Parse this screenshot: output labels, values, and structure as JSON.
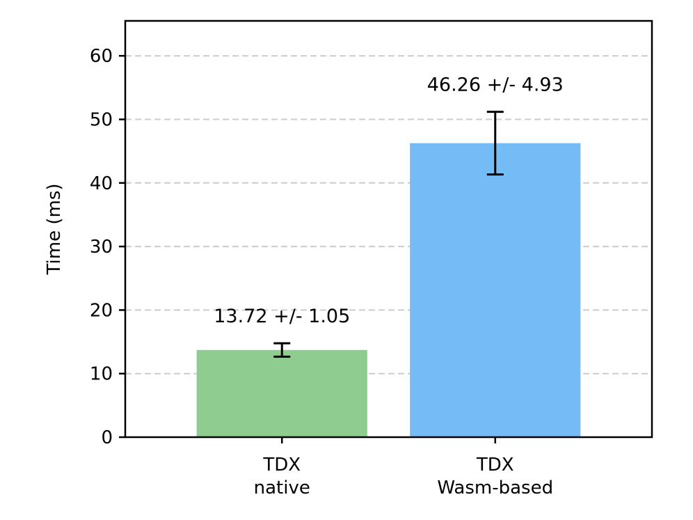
{
  "chart_data": {
    "type": "bar",
    "title": "",
    "xlabel": "",
    "ylabel": "Time (ms)",
    "ylim": [
      0,
      65.5
    ],
    "yticks": [
      0,
      10,
      20,
      30,
      40,
      50,
      60
    ],
    "grid": {
      "y": true,
      "style": "dashed"
    },
    "categories": [
      {
        "lines": [
          "TDX",
          "native"
        ]
      },
      {
        "lines": [
          "TDX",
          "Wasm-based"
        ]
      }
    ],
    "values": [
      13.72,
      46.26
    ],
    "errors": [
      1.05,
      4.93
    ],
    "annotations": [
      "13.72 +/- 1.05",
      "46.26 +/- 4.93"
    ],
    "colors": [
      "#8ecc8f",
      "#73bcf6"
    ]
  }
}
